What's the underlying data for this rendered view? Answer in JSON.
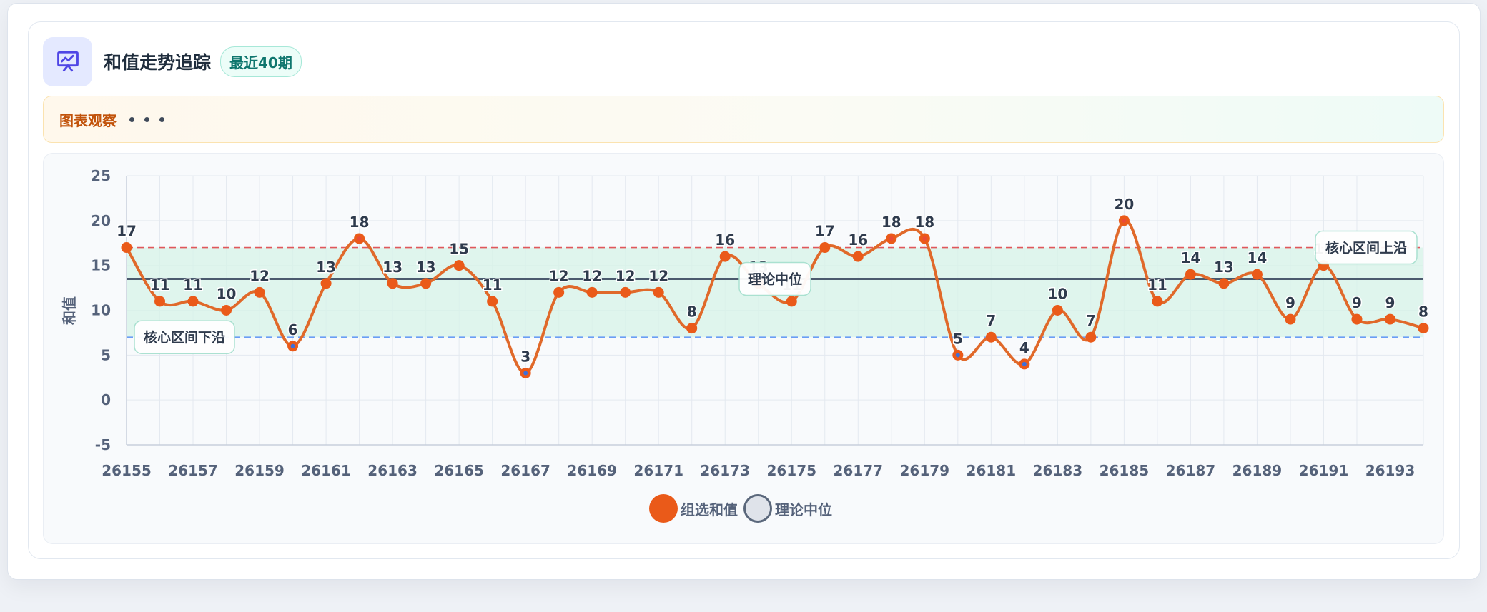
{
  "header": {
    "title": "和值走势追踪",
    "badge": "最近40期",
    "icon": "chart-presentation-icon"
  },
  "observation": {
    "label": "图表观察",
    "dots": "• • •"
  },
  "colors": {
    "series": "#e0692a",
    "point": "#ea5a19",
    "median": "#4b5a6e",
    "upper": "#e0575b",
    "lower": "#6a9ef5",
    "band": "#d7f3e8",
    "highlight_high": "#e94b35",
    "highlight_low": "#3e6fd8"
  },
  "chart_data": {
    "type": "line",
    "title": "",
    "xlabel": "",
    "ylabel": "和值",
    "x": [
      26155,
      26156,
      26157,
      26158,
      26159,
      26160,
      26161,
      26162,
      26163,
      26164,
      26165,
      26166,
      26167,
      26168,
      26169,
      26170,
      26171,
      26172,
      26173,
      26174,
      26175,
      26176,
      26177,
      26178,
      26179,
      26180,
      26181,
      26182,
      26183,
      26184,
      26185,
      26186,
      26187,
      26188,
      26189,
      26190,
      26191,
      26192,
      26193,
      26194
    ],
    "x_tick_labels": [
      "26155",
      "26157",
      "26159",
      "26161",
      "26163",
      "26165",
      "26167",
      "26169",
      "26171",
      "26173",
      "26175",
      "26177",
      "26179",
      "26181",
      "26183",
      "26185",
      "26187",
      "26189",
      "26191",
      "26193"
    ],
    "ylim": [
      -5,
      25
    ],
    "y_ticks": [
      -5,
      0,
      5,
      10,
      15,
      20,
      25
    ],
    "grid": true,
    "series": [
      {
        "name": "组选和值",
        "values": [
          17,
          11,
          11,
          10,
          12,
          6,
          13,
          18,
          13,
          13,
          15,
          11,
          3,
          12,
          12,
          12,
          12,
          8,
          16,
          13,
          11,
          17,
          16,
          18,
          18,
          5,
          7,
          4,
          10,
          7,
          20,
          11,
          14,
          13,
          14,
          9,
          15,
          9,
          9,
          8
        ]
      }
    ],
    "reference_lines": [
      {
        "name": "理论中位",
        "value": 13.5,
        "label": "理论中位"
      },
      {
        "name": "核心区间上沿",
        "value": 17,
        "label": "核心区间上沿"
      },
      {
        "name": "核心区间下沿",
        "value": 7,
        "label": "核心区间下沿"
      }
    ],
    "core_band": [
      7,
      17
    ],
    "highlight_high_threshold": 18,
    "highlight_low_threshold": 6,
    "legend": [
      "组选和值",
      "理论中位"
    ],
    "legend_position": "bottom"
  }
}
